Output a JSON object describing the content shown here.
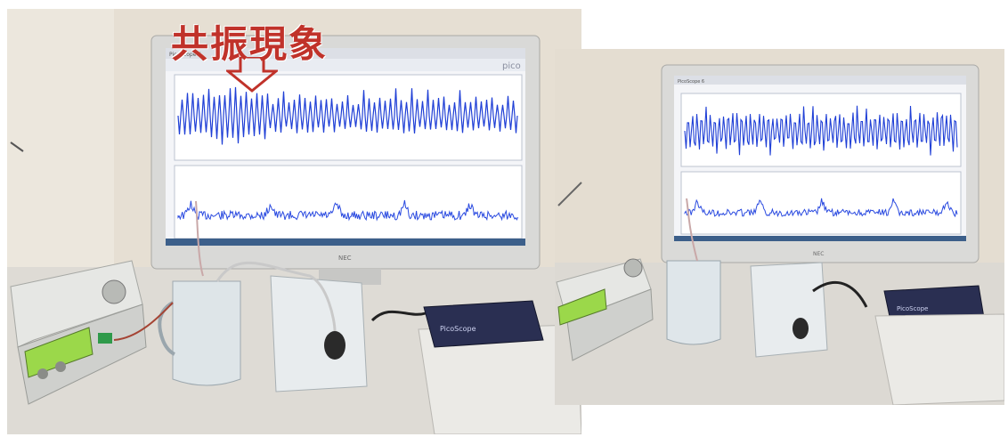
{
  "overlay_text": "共振現象",
  "left_photo": {
    "monitor_brand": "NEC",
    "screen_logo": "pico",
    "scope_label": "PicoScope",
    "title_bar": "PicoScope 6"
  },
  "right_photo": {
    "monitor_brand": "NEC",
    "scope_label": "PicoScope",
    "title_bar": "PicoScope 6"
  },
  "colors": {
    "wave_blue": "#1f3fd6",
    "overlay_red": "#c0322a",
    "wall": "#e4ddd1",
    "desk": "#d9d6d0",
    "monitor_frame": "#d8d8d6",
    "lcd_green": "#9bd84a"
  }
}
